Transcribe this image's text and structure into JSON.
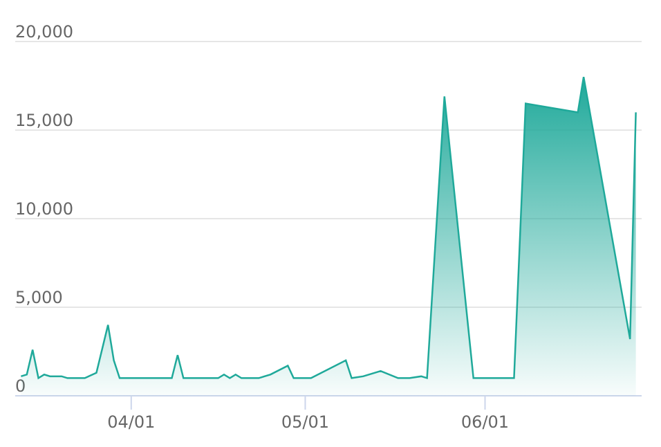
{
  "chart_data": {
    "type": "area",
    "x": [
      "03/13",
      "03/14",
      "03/15",
      "03/16",
      "03/17",
      "03/18",
      "03/19",
      "03/20",
      "03/21",
      "03/24",
      "03/26",
      "03/28",
      "03/29",
      "03/30",
      "04/08",
      "04/09",
      "04/10",
      "04/16",
      "04/17",
      "04/18",
      "04/19",
      "04/20",
      "04/23",
      "04/25",
      "04/28",
      "04/29",
      "05/02",
      "05/08",
      "05/09",
      "05/11",
      "05/14",
      "05/17",
      "05/19",
      "05/21",
      "05/22",
      "05/25",
      "05/30",
      "06/06",
      "06/08",
      "06/17",
      "06/18",
      "06/26",
      "06/27"
    ],
    "values": [
      1100,
      1200,
      2600,
      1000,
      1200,
      1100,
      1100,
      1100,
      1000,
      1000,
      1300,
      4000,
      2000,
      1000,
      1000,
      2300,
      1000,
      1000,
      1200,
      1000,
      1200,
      1000,
      1000,
      1200,
      1700,
      1000,
      1000,
      2000,
      1000,
      1100,
      1400,
      1000,
      1000,
      1100,
      1000,
      16900,
      1000,
      1000,
      16500,
      16000,
      18000,
      3200,
      16000
    ],
    "color": "#1fa99a",
    "xlim": [
      "03/12",
      "06/28"
    ],
    "xticks": [
      "04/01",
      "05/01",
      "06/01"
    ],
    "ylim": [
      0,
      20000
    ],
    "yticks": [
      0,
      {
        "value": 5000,
        "label": "5,000"
      },
      {
        "value": 10000,
        "label": "10,000"
      },
      {
        "value": 15000,
        "label": "15,000"
      },
      {
        "value": 20000,
        "label": "20,000"
      }
    ],
    "grid": true
  }
}
